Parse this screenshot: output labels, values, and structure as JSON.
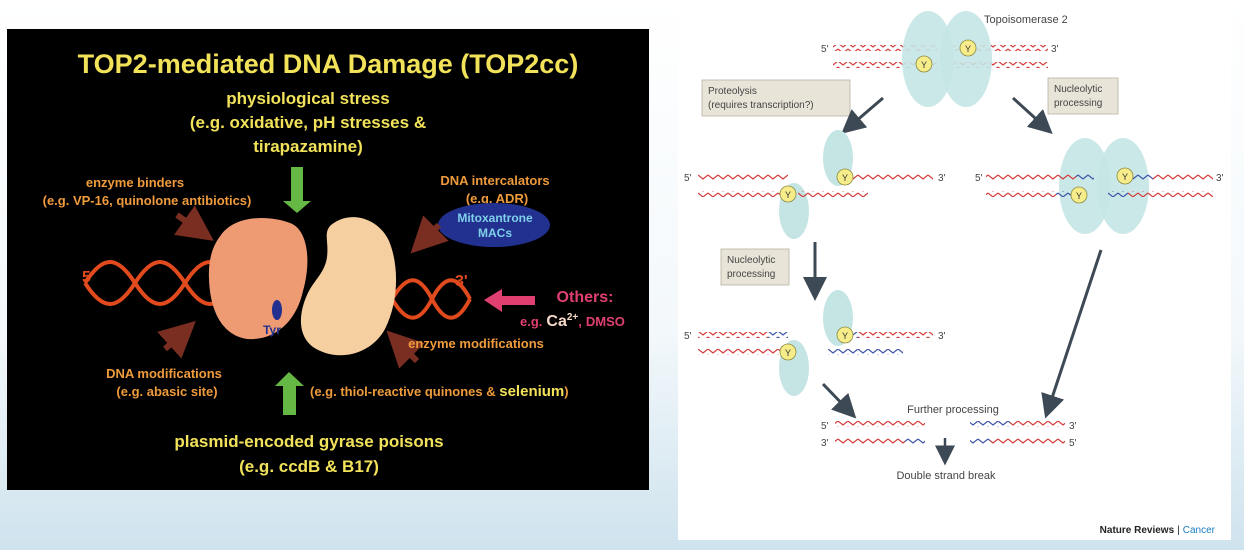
{
  "left": {
    "title": "TOP2-mediated DNA Damage (TOP2cc)",
    "physiological": [
      "physiological stress",
      "(e.g. oxidative, pH stresses &",
      "tirapazamine)"
    ],
    "enzyme_binders": [
      "enzyme binders",
      "(e.g. VP-16, quinolone antibiotics)"
    ],
    "dna_intercalators": [
      "DNA intercalators",
      "(e.g. ADR)"
    ],
    "intercalator_drugs": [
      "Mitoxantrone",
      "MACs"
    ],
    "five_prime": "5'",
    "three_prime": "3'",
    "tyr": "Tyr",
    "others_title": "Others:",
    "others_eg": "e.g.",
    "others_ca": "Ca",
    "others_ca_sup": "2+",
    "others_sep": ",",
    "others_dmso": "DMSO",
    "dna_modifications": [
      "DNA modifications",
      "(e.g. abasic site)"
    ],
    "enzyme_modifications": "enzyme modifications",
    "enzyme_mod_eg": "(e.g. thiol-reactive quinones & ",
    "enzyme_mod_selenium": "selenium",
    "enzyme_mod_close": ")",
    "plasmid": [
      "plasmid-encoded gyrase poisons",
      "(e.g. ccdB & B17)"
    ],
    "colors": {
      "yellow": "#f2e25a",
      "orange": "#ef9b3c",
      "arrow_red": "#7a2e22",
      "arrow_green": "#66b845",
      "dna": "#e04a1c",
      "enzyme_left": "#ee9b74",
      "enzyme_right": "#f6cfa0",
      "ellipse": "#22318f",
      "ellipse_text": "#7fd0ea",
      "others": "#e04070"
    }
  },
  "right": {
    "title": "Topoisomerase 2",
    "proteolysis": [
      "Proteolysis",
      "(requires transcription?)"
    ],
    "nucleolytic_top": [
      "Nucleolytic",
      "processing"
    ],
    "nucleolytic_mid": [
      "Nucleolytic",
      "processing"
    ],
    "y": "Y",
    "five": "5'",
    "three": "3'",
    "further": "Further processing",
    "dsb": "Double strand break",
    "footer_brand": "Nature Reviews",
    "footer_sep": "|",
    "footer_journal": "Cancer",
    "colors": {
      "dna_red": "#d23a3a",
      "dna_blue": "#3a55a8",
      "enzyme": "#c5e5e5",
      "label_box": "#e9e4d8",
      "y_fill": "#f7ec8a",
      "arrow": "#3d4954",
      "cancer": "#1a7bc0"
    }
  }
}
